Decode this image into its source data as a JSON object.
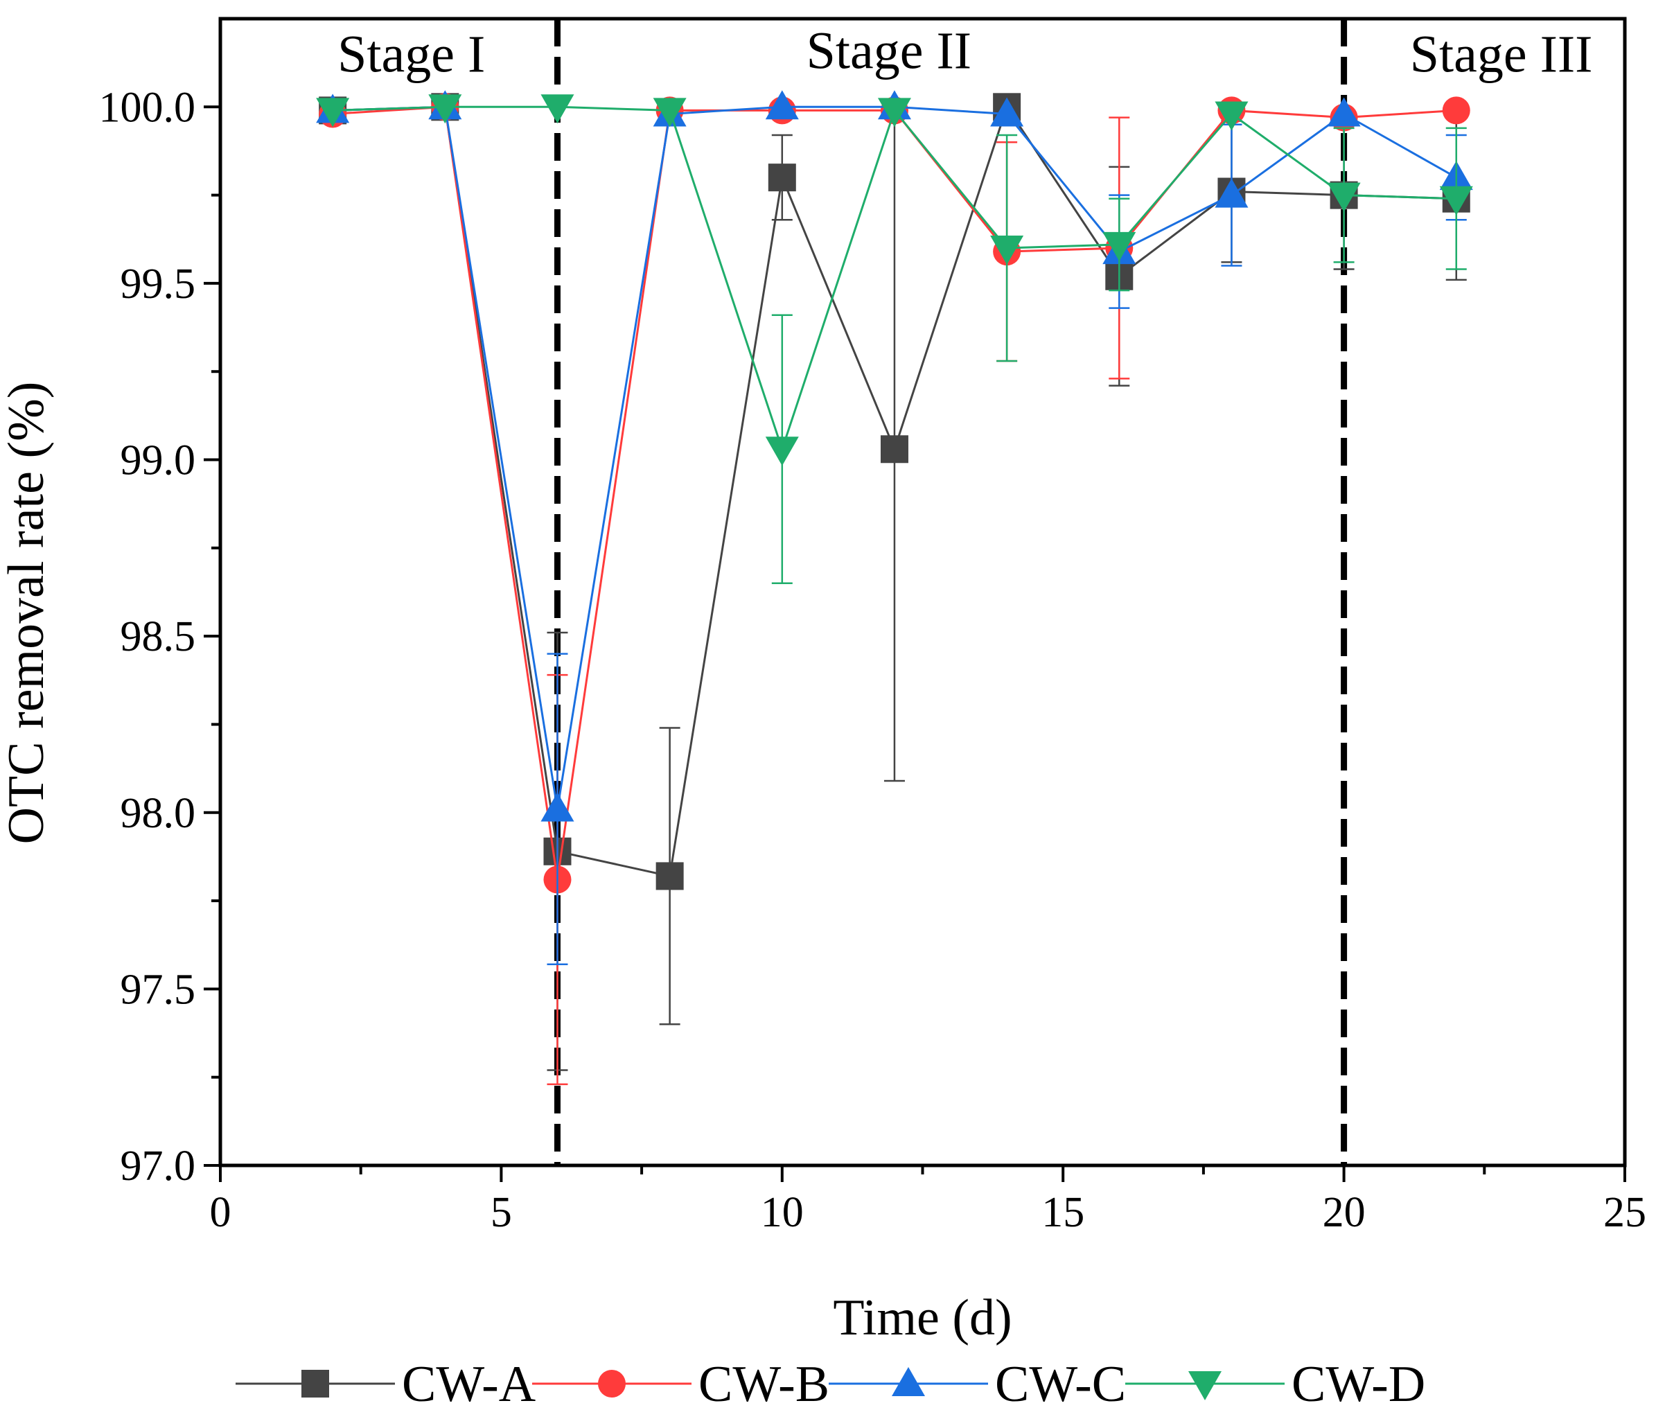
{
  "chart_data": {
    "type": "line",
    "xlabel": "Time (d)",
    "ylabel": "OTC removal rate (%)",
    "xlim": [
      0,
      25
    ],
    "ylim": [
      97.0,
      100.25
    ],
    "xticks": [
      0,
      5,
      10,
      15,
      20,
      25
    ],
    "yticks": [
      97.0,
      97.5,
      98.0,
      98.5,
      99.0,
      99.5,
      100.0
    ],
    "x_minor_step": 2.5,
    "y_minor_step": 0.25,
    "grid": false,
    "legend_position": "bottom",
    "stage_lines": [
      6,
      20
    ],
    "stage_labels": [
      {
        "text": "Stage I",
        "x": 3.4,
        "y": 100.1
      },
      {
        "text": "Stage II",
        "x": 11.9,
        "y": 100.11
      },
      {
        "text": "Stage III",
        "x": 22.8,
        "y": 100.1
      }
    ],
    "x": [
      2,
      4,
      6,
      8,
      10,
      12,
      14,
      16,
      18,
      20,
      22
    ],
    "series": [
      {
        "name": "CW-A",
        "color": "#444444",
        "marker": "square",
        "x": [
          2,
          4,
          6,
          8,
          10,
          12,
          14,
          16,
          18,
          20,
          22
        ],
        "values": [
          99.99,
          100.0,
          97.89,
          97.82,
          99.8,
          99.03,
          100.0,
          99.52,
          99.76,
          99.75,
          99.74
        ],
        "errors": [
          0.0,
          0.0,
          0.62,
          0.42,
          0.12,
          0.94,
          0.0,
          0.31,
          0.2,
          0.21,
          0.23
        ]
      },
      {
        "name": "CW-B",
        "color": "#ff3b3b",
        "marker": "circle",
        "x": [
          2,
          4,
          6,
          8,
          10,
          12,
          14,
          16,
          18,
          20,
          22
        ],
        "values": [
          99.98,
          100.0,
          97.81,
          99.99,
          99.99,
          99.99,
          99.59,
          99.6,
          99.99,
          99.97,
          99.99
        ],
        "errors": [
          0.0,
          0.0,
          0.58,
          0.0,
          0.0,
          0.0,
          0.31,
          0.37,
          0.0,
          0.0,
          0.0
        ]
      },
      {
        "name": "CW-C",
        "color": "#1a6fe0",
        "marker": "triangle-up",
        "x": [
          2,
          4,
          6,
          8,
          10,
          12,
          14,
          16,
          18,
          20,
          22
        ],
        "values": [
          99.99,
          100.0,
          98.01,
          99.98,
          100.0,
          100.0,
          99.98,
          99.59,
          99.75,
          99.98,
          99.8
        ],
        "errors": [
          0.0,
          0.0,
          0.44,
          0.0,
          0.0,
          0.0,
          0.0,
          0.16,
          0.2,
          0.0,
          0.12
        ]
      },
      {
        "name": "CW-D",
        "color": "#1fad6b",
        "marker": "triangle-down",
        "x": [
          2,
          4,
          6,
          8,
          10,
          12,
          14,
          16,
          18,
          20,
          22
        ],
        "values": [
          99.99,
          100.0,
          100.0,
          99.99,
          99.03,
          99.99,
          99.6,
          99.61,
          99.98,
          99.75,
          99.74
        ],
        "errors": [
          0.0,
          0.0,
          0.0,
          0.0,
          0.38,
          0.0,
          0.32,
          0.13,
          0.0,
          0.19,
          0.2
        ]
      }
    ]
  }
}
